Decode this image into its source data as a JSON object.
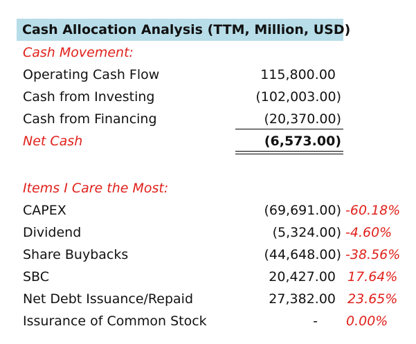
{
  "title": "Cash Allocation Analysis (TTM, Million, USD)",
  "cash_movement": {
    "header": "Cash Movement:",
    "rows": [
      {
        "label": "Operating Cash Flow",
        "value": "115,800.00"
      },
      {
        "label": "Cash from Investing",
        "value": "(102,003.00)"
      },
      {
        "label": "Cash from Financing",
        "value": "(20,370.00)"
      }
    ],
    "net": {
      "label": "Net Cash",
      "value": "(6,573.00)"
    }
  },
  "items": {
    "header": "Items I Care the Most:",
    "rows": [
      {
        "label": "CAPEX",
        "value": "(69,691.00)",
        "pct": "-60.18%"
      },
      {
        "label": "Dividend",
        "value": "(5,324.00)",
        "pct": "-4.60%"
      },
      {
        "label": "Share Buybacks",
        "value": "(44,648.00)",
        "pct": "-38.56%"
      },
      {
        "label": "SBC",
        "value": "20,427.00",
        "pct": "17.64%"
      },
      {
        "label": "Net Debt Issuance/Repaid",
        "value": "27,382.00",
        "pct": "23.65%"
      },
      {
        "label": "Issurance of Common Stock",
        "value": "-",
        "pct": "0.00%"
      }
    ]
  },
  "colors": {
    "title_fill": "#b7dde8",
    "accent_red": "#e0201b"
  }
}
